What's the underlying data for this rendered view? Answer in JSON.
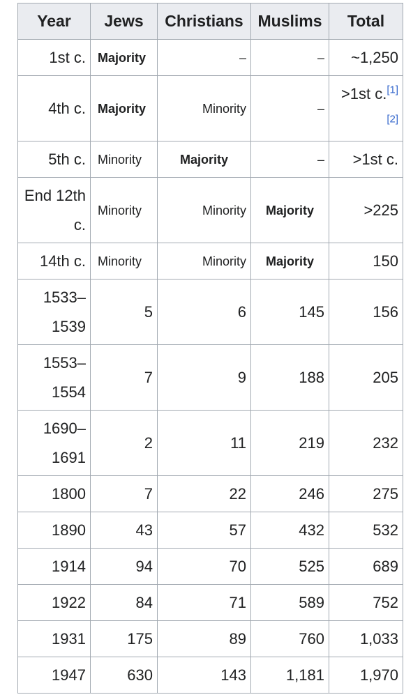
{
  "table": {
    "headers": [
      "Year",
      "Jews",
      "Christians",
      "Muslims",
      "Total"
    ],
    "rows": [
      {
        "year": "1st c.",
        "jews": "Majority",
        "christians": "–",
        "muslims": "–",
        "total": "~1,250"
      },
      {
        "year": "4th c.",
        "jews": "Majority",
        "christians": "Minority",
        "muslims": "–",
        "total": ">1st c.",
        "total_ref": "[1][2]"
      },
      {
        "year": "5th c.",
        "jews": "Minority",
        "christians": "Majority",
        "muslims": "–",
        "total": ">1st c."
      },
      {
        "year": "End 12th c.",
        "jews": "Minority",
        "christians": "Minority",
        "muslims": "Majority",
        "total": ">225"
      },
      {
        "year": "14th c.",
        "jews": "Minority",
        "christians": "Minority",
        "muslims": "Majority",
        "total": "150"
      },
      {
        "year": "1533–1539",
        "jews": "5",
        "christians": "6",
        "muslims": "145",
        "total": "156"
      },
      {
        "year": "1553–1554",
        "jews": "7",
        "christians": "9",
        "muslims": "188",
        "total": "205"
      },
      {
        "year": "1690–1691",
        "jews": "2",
        "christians": "11",
        "muslims": "219",
        "total": "232"
      },
      {
        "year": "1800",
        "jews": "7",
        "christians": "22",
        "muslims": "246",
        "total": "275"
      },
      {
        "year": "1890",
        "jews": "43",
        "christians": "57",
        "muslims": "432",
        "total": "532"
      },
      {
        "year": "1914",
        "jews": "94",
        "christians": "70",
        "muslims": "525",
        "total": "689"
      },
      {
        "year": "1922",
        "jews": "84",
        "christians": "71",
        "muslims": "589",
        "total": "752"
      },
      {
        "year": "1931",
        "jews": "175",
        "christians": "89",
        "muslims": "760",
        "total": "1,033"
      },
      {
        "year": "1947",
        "jews": "630",
        "christians": "143",
        "muslims": "1,181",
        "total": "1,970"
      }
    ]
  }
}
